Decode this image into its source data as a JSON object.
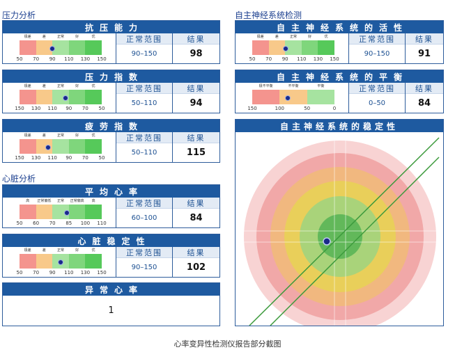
{
  "sections": {
    "stress": "压力分析",
    "ans": "自主神经系统检测",
    "heart": "心脏分析"
  },
  "col_labels": {
    "range": "正常范围",
    "result": "结果"
  },
  "cards": {
    "anti_stress": {
      "title": "抗压能力",
      "segments": [
        "极差",
        "差",
        "正常",
        "好",
        "优"
      ],
      "ticks": [
        "50",
        "70",
        "90",
        "110",
        "130",
        "150"
      ],
      "range": "90–150",
      "result": "98",
      "position": 0.4
    },
    "stress_index": {
      "title": "压力指数",
      "segments": [
        "极差",
        "差",
        "正常",
        "好",
        "优"
      ],
      "ticks": [
        "150",
        "130",
        "110",
        "90",
        "70",
        "50"
      ],
      "range": "50–110",
      "result": "94",
      "position": 0.56
    },
    "fatigue": {
      "title": "疲劳指数",
      "segments": [
        "极差",
        "差",
        "正常",
        "好",
        "优"
      ],
      "ticks": [
        "150",
        "130",
        "110",
        "90",
        "70",
        "50"
      ],
      "range": "50–110",
      "result": "115",
      "position": 0.35
    },
    "heart_rate": {
      "title": "平均心率",
      "segments": [
        "高",
        "正常偏低",
        "正常",
        "正常偏高",
        "高"
      ],
      "ticks": [
        "50",
        "60",
        "70",
        "85",
        "100",
        "110"
      ],
      "range": "60–100",
      "result": "84",
      "position": 0.58
    },
    "heart_stability": {
      "title": "心脏稳定性",
      "segments": [
        "极差",
        "差",
        "正常",
        "好",
        "优"
      ],
      "ticks": [
        "50",
        "70",
        "90",
        "110",
        "130",
        "150"
      ],
      "range": "90–150",
      "result": "102",
      "position": 0.5
    },
    "ans_activity": {
      "title": "自主神经系统的活性",
      "segments": [
        "极差",
        "差",
        "正常",
        "好",
        "优"
      ],
      "ticks": [
        "50",
        "70",
        "90",
        "110",
        "130",
        "150"
      ],
      "range": "90–150",
      "result": "91",
      "position": 0.41
    },
    "ans_balance": {
      "title": "自主神经系统的平衡",
      "segments": [
        "极不平衡",
        "不平衡",
        "平衡"
      ],
      "ticks": [
        "150",
        "100",
        "50",
        "0"
      ],
      "range": "0–50",
      "result": "84",
      "position": 0.43
    }
  },
  "arrhythmia": {
    "title": "异常心率",
    "value": "1"
  },
  "stability": {
    "title": "自主神经系统的稳定性"
  },
  "caption": "心率变异性检测仪报告部分截图",
  "colors": {
    "header": "#1e5aa0",
    "seg5": [
      "#f4948e",
      "#f8c98a",
      "#a6e3a0",
      "#7fd67c",
      "#56c95a"
    ],
    "seg3": [
      "#f4948e",
      "#f8c98a",
      "#a6e3a0"
    ],
    "rings": [
      "#f8d3d3",
      "#f1a8a8",
      "#f1b87f",
      "#e9cf5a",
      "#a9d37a",
      "#62b85a"
    ],
    "line": "#3c9a3c",
    "dot": "#1a2a8a"
  }
}
